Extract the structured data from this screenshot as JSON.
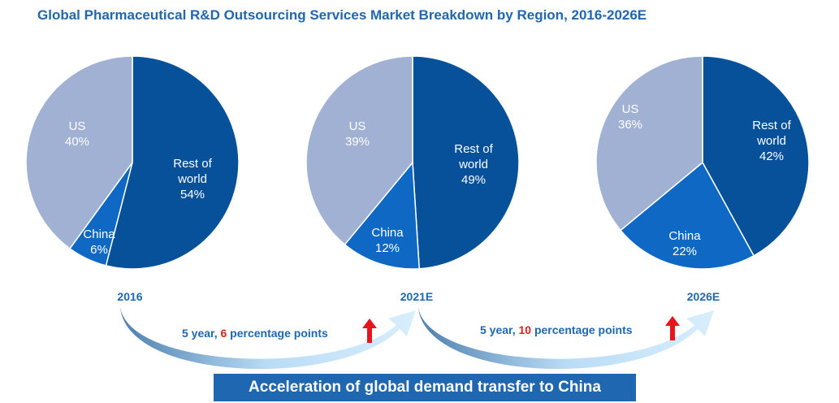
{
  "chart_data": [
    {
      "type": "pie",
      "year_label": "2016",
      "slices": [
        {
          "name": "Rest of world",
          "value": 54,
          "label": "54%",
          "color": "#06519a"
        },
        {
          "name": "China",
          "value": 6,
          "label": "6%",
          "color": "#0f69c4"
        },
        {
          "name": "US",
          "value": 40,
          "label": "40%",
          "color": "#a1b1d4"
        }
      ]
    },
    {
      "type": "pie",
      "year_label": "2021E",
      "slices": [
        {
          "name": "Rest of world",
          "value": 49,
          "label": "49%",
          "color": "#06519a"
        },
        {
          "name": "China",
          "value": 12,
          "label": "12%",
          "color": "#0f69c4"
        },
        {
          "name": "US",
          "value": 39,
          "label": "39%",
          "color": "#a1b1d4"
        }
      ]
    },
    {
      "type": "pie",
      "year_label": "2026E",
      "slices": [
        {
          "name": "Rest of world",
          "value": 42,
          "label": "42%",
          "color": "#06519a"
        },
        {
          "name": "China",
          "value": 22,
          "label": "22%",
          "color": "#0f69c4"
        },
        {
          "name": "US",
          "value": 36,
          "label": "36%",
          "color": "#a1b1d4"
        }
      ]
    }
  ],
  "title": "Global Pharmaceutical R&D Outsourcing Services Market Breakdown by Region, 2016-2026E",
  "transitions": [
    {
      "prefix": "5 year, ",
      "highlight": "6",
      "suffix": " percentage points",
      "direction_icon": "red-up-arrow-icon"
    },
    {
      "prefix": "5 year, ",
      "highlight": "10",
      "suffix": " percentage points",
      "direction_icon": "red-up-arrow-icon"
    }
  ],
  "banner": "Acceleration of global demand transfer to China",
  "colors": {
    "title": "#1f67b0",
    "highlight": "#e0201f",
    "arc_light": "#cfe8fb",
    "arc_dark": "#6a9fcf"
  }
}
